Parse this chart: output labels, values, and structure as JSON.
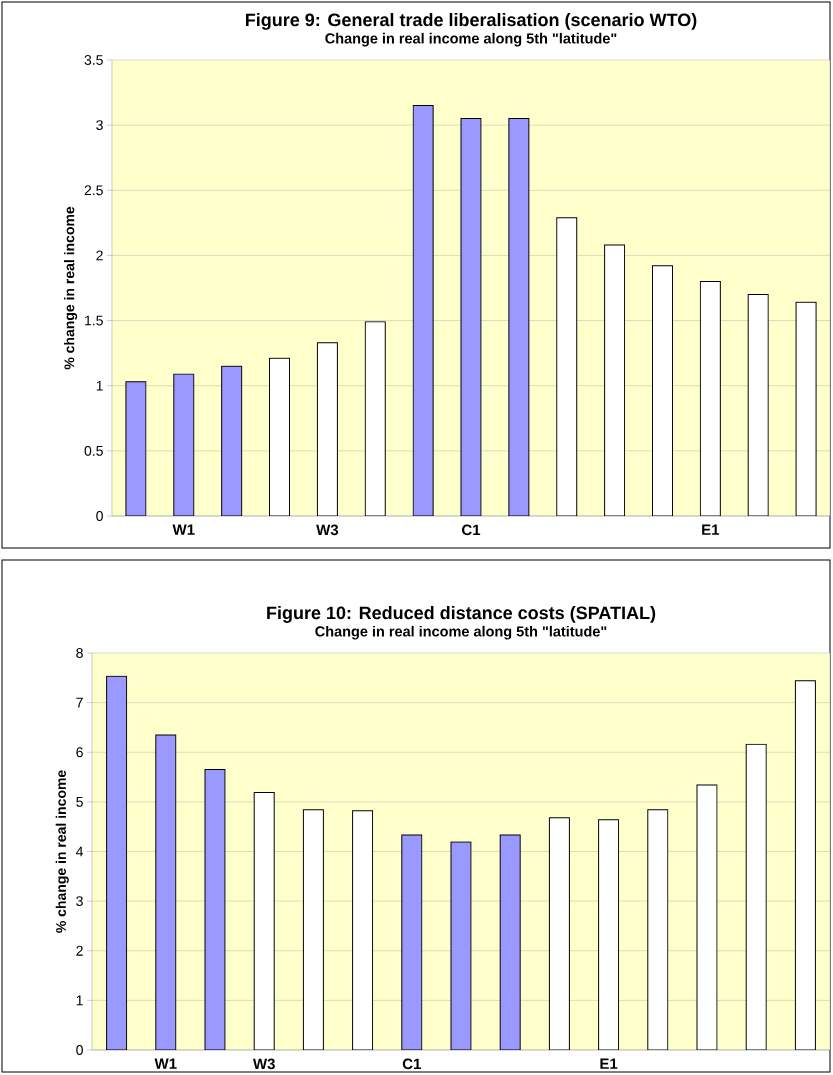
{
  "chart_data": [
    {
      "type": "bar",
      "title": "Figure 9: General trade liberalisation (scenario WTO)",
      "subtitle": "Change in real income along 5th \"latitude\"",
      "ylabel": "% change in real income",
      "categories": [
        null,
        "W1",
        null,
        null,
        "W3",
        null,
        null,
        "C1",
        null,
        null,
        null,
        null,
        "E1",
        null,
        null
      ],
      "values": [
        1.03,
        1.09,
        1.15,
        1.21,
        1.33,
        1.49,
        3.15,
        3.05,
        3.05,
        2.29,
        2.08,
        1.92,
        1.8,
        1.7,
        1.64
      ],
      "colors": [
        "#9999ff",
        "#9999ff",
        "#9999ff",
        "#ffffff",
        "#ffffff",
        "#ffffff",
        "#9999ff",
        "#9999ff",
        "#9999ff",
        "#ffffff",
        "#ffffff",
        "#ffffff",
        "#ffffff",
        "#ffffff",
        "#ffffff"
      ],
      "ylim": [
        0,
        3.5
      ],
      "yticks": [
        0,
        0.5,
        1,
        1.5,
        2,
        2.5,
        3,
        3.5
      ],
      "grid": "y"
    },
    {
      "type": "bar",
      "title": "Figure 10: Reduced distance costs (SPATIAL)",
      "subtitle": "Change in real income along 5th \"latitude\"",
      "ylabel": "% change in real income",
      "categories": [
        null,
        "W1",
        null,
        "W3",
        null,
        null,
        "C1",
        null,
        null,
        null,
        "E1",
        null,
        null,
        null,
        null
      ],
      "values": [
        7.53,
        6.35,
        5.65,
        5.19,
        4.84,
        4.82,
        4.33,
        4.19,
        4.33,
        4.68,
        4.64,
        4.84,
        5.34,
        6.16,
        7.44
      ],
      "colors": [
        "#9999ff",
        "#9999ff",
        "#9999ff",
        "#ffffff",
        "#ffffff",
        "#ffffff",
        "#9999ff",
        "#9999ff",
        "#9999ff",
        "#ffffff",
        "#ffffff",
        "#ffffff",
        "#ffffff",
        "#ffffff",
        "#ffffff"
      ],
      "ylim": [
        0,
        8
      ],
      "yticks": [
        0,
        1,
        2,
        3,
        4,
        5,
        6,
        7,
        8
      ],
      "grid": "y"
    }
  ]
}
